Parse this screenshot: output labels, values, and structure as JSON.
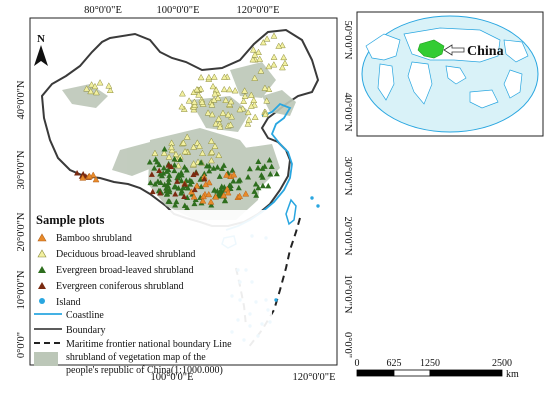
{
  "main_map": {
    "top_ticks": [
      "80°0'0\"E",
      "100°0'0\"E",
      "120°0'0\"E"
    ],
    "bottom_ticks": [
      "100°0'0\"E",
      "120°0'0\"E"
    ],
    "left_ticks": [
      "40°0'0\"N",
      "30°0'0\"N",
      "20°0'0\"N",
      "10°0'0\"N",
      "0°0'0\""
    ],
    "right_ticks": [
      "50°0'0\"N",
      "40°0'0\"N",
      "30°0'0\"N",
      "20°0'0\"N",
      "10°0'0\"N",
      "0°0'0\""
    ],
    "north_label": "N"
  },
  "legend": {
    "title": "Sample plots",
    "items": {
      "bamboo": {
        "label": "Bamboo shrubland",
        "color": "#e88a2a"
      },
      "deciduous": {
        "label": "Deciduous broad-leaved shrubland",
        "color": "#f2f0a0"
      },
      "evergreen_broad": {
        "label": "Evergreen broad-leaved shrubland",
        "color": "#2e6e1e"
      },
      "evergreen_conif": {
        "label": "Evergreen coniferous shrubland",
        "color": "#7a2a10"
      },
      "island": {
        "label": "Island",
        "color": "#29a6e0"
      },
      "coastline": {
        "label": "Coastline",
        "color": "#29a6e0"
      },
      "boundary": {
        "label": "Boundary",
        "color": "#444444"
      },
      "maritime": {
        "label": "Maritime frontier national boundary Line",
        "color": "#222222"
      },
      "shrubland": {
        "label_line1": "shrubland of vegetation map of the",
        "label_line2": "people's republic of China(1:1000.000)",
        "color": "#bcc7b8"
      }
    }
  },
  "inset": {
    "label": "China",
    "highlight_color": "#33cc33"
  },
  "scale_bar": {
    "ticks": [
      "0",
      "625",
      "1250",
      "2500"
    ],
    "unit": "km"
  }
}
